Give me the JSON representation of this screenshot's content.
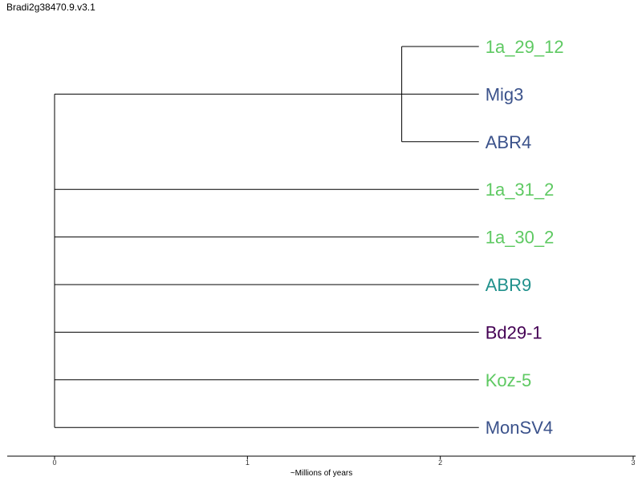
{
  "title": "Bradi2g38470.9.v3.1",
  "chart_data": {
    "type": "dendrogram",
    "xlabel": "~Millions of years",
    "xlim": [
      0,
      3
    ],
    "ticks": [
      "0",
      "1",
      "2",
      "3"
    ],
    "tips": [
      {
        "label": "1a_29_12",
        "color": "#5ec962"
      },
      {
        "label": "Mig3",
        "color": "#3b528b"
      },
      {
        "label": "ABR4",
        "color": "#3b528b"
      },
      {
        "label": "1a_31_2",
        "color": "#5ec962"
      },
      {
        "label": "1a_30_2",
        "color": "#5ec962"
      },
      {
        "label": "ABR9",
        "color": "#21918c"
      },
      {
        "label": "Bd29-1",
        "color": "#440154"
      },
      {
        "label": "Koz-5",
        "color": "#5ec962"
      },
      {
        "label": "MonSV4",
        "color": "#3b528b"
      }
    ],
    "clade": {
      "members": [
        "1a_29_12",
        "Mig3",
        "ABR4"
      ],
      "node_age": 1.8
    },
    "tip_age": 2.2
  }
}
